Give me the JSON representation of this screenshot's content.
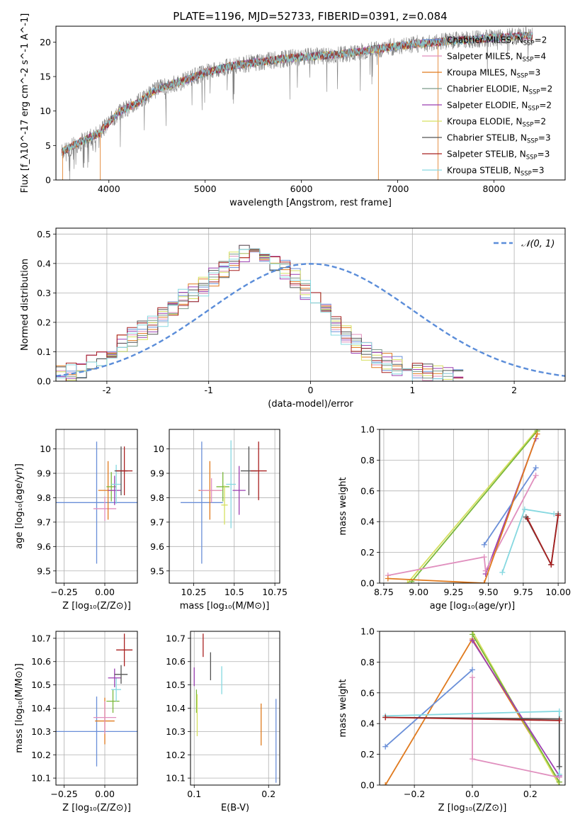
{
  "figure_title": "PLATE=1196, MJD=52733, FIBERID=0391, z=0.084",
  "colors": {
    "chabrier_miles": "#6a8fd8",
    "salpeter_miles": "#e08fbe",
    "kroupa_miles": "#e07a1e",
    "chabrier_elodie": "#7a9a8a",
    "salpeter_elodie": "#9b3fb0",
    "kroupa_elodie": "#d6e060",
    "chabrier_stelib": "#555555",
    "salpeter_stelib": "#a82020",
    "kroupa_stelib": "#86d8e0",
    "green_model": "#7ab83a",
    "normal_curve": "#5b8dd9",
    "grid": "#b0b0b0"
  },
  "chart_data": [
    {
      "id": "spectrum",
      "type": "line",
      "xlabel": "wavelength [Angstrom, rest frame]",
      "ylabel": "Flux [f_λ10^-17 erg cm^-2 s^-1 A^-1]",
      "xlim": [
        3450,
        8740
      ],
      "ylim": [
        0,
        22.3
      ],
      "xticks": [
        4000,
        5000,
        6000,
        7000,
        8000
      ],
      "yticks": [
        0,
        5,
        10,
        15,
        20
      ],
      "grid": false,
      "legend_position": "right",
      "legend": [
        {
          "prefix": "Chabrier MILES, N",
          "n": "2",
          "color": "#6a8fd8"
        },
        {
          "prefix": "Salpeter MILES, N",
          "n": "4",
          "color": "#e08fbe"
        },
        {
          "prefix": "Kroupa MILES, N",
          "n": "3",
          "color": "#e07a1e"
        },
        {
          "prefix": "Chabrier ELODIE, N",
          "n": "2",
          "color": "#7a9a8a"
        },
        {
          "prefix": "Salpeter ELODIE, N",
          "n": "2",
          "color": "#9b3fb0"
        },
        {
          "prefix": "Kroupa ELODIE, N",
          "n": "2",
          "color": "#d6e060"
        },
        {
          "prefix": "Chabrier STELIB, N",
          "n": "3",
          "color": "#555555"
        },
        {
          "prefix": "Salpeter STELIB, N",
          "n": "3",
          "color": "#a82020"
        },
        {
          "prefix": "Kroupa STELIB, N",
          "n": "3",
          "color": "#86d8e0"
        }
      ],
      "continuum": {
        "x": [
          3500,
          3700,
          3900,
          4100,
          4300,
          4500,
          4800,
          5000,
          5300,
          5600,
          5900,
          6200,
          6500,
          6800,
          7100,
          7400,
          7700,
          8000,
          8300
        ],
        "y": [
          4.0,
          5.5,
          6.8,
          9.8,
          11.2,
          13.2,
          14.5,
          15.6,
          16.6,
          17.2,
          17.7,
          18.0,
          18.4,
          19.0,
          19.6,
          20.0,
          20.3,
          20.6,
          20.9
        ]
      }
    },
    {
      "id": "residuals",
      "type": "line",
      "xlabel": "(data-model)/error",
      "ylabel": "Normed distribution",
      "xlim": [
        -2.5,
        2.5
      ],
      "ylim": [
        0,
        0.52
      ],
      "xticks": [
        -2,
        -1,
        0,
        1,
        2
      ],
      "yticks": [
        0.0,
        0.1,
        0.2,
        0.3,
        0.4,
        0.5
      ],
      "grid": true,
      "legend": "𝒩(0, 1)",
      "bin_width": 0.1,
      "envelope": [
        0.02,
        0.03,
        0.04,
        0.06,
        0.08,
        0.1,
        0.13,
        0.15,
        0.17,
        0.19,
        0.22,
        0.25,
        0.28,
        0.3,
        0.32,
        0.35,
        0.38,
        0.41,
        0.43,
        0.44,
        0.43,
        0.41,
        0.38,
        0.35,
        0.31,
        0.27,
        0.23,
        0.19,
        0.16,
        0.13,
        0.1,
        0.08,
        0.06,
        0.05,
        0.04,
        0.03,
        0.03,
        0.02,
        0.02,
        0.02
      ]
    },
    {
      "id": "age_vs_Z",
      "type": "scatter",
      "xlabel": "Z [log₁₀(Z/Z⊙)]",
      "ylabel": "age  [log₁₀(age/yr)]",
      "xlim": [
        -0.3,
        0.2
      ],
      "ylim": [
        9.45,
        10.08
      ],
      "xticks": [
        -0.25,
        0.0
      ],
      "xticklabels": [
        "−0.25",
        "0.00"
      ],
      "yticks": [
        9.5,
        9.6,
        9.7,
        9.8,
        9.9,
        10.0
      ],
      "grid": true,
      "points": [
        {
          "model": "chabrier_miles",
          "x": -0.05,
          "y": 9.78,
          "xerr": 0.25,
          "yerr": 0.25
        },
        {
          "model": "salpeter_miles",
          "x": 0.0,
          "y": 9.755,
          "xerr": 0.07,
          "yerr": 0.05
        },
        {
          "model": "kroupa_miles",
          "x": 0.02,
          "y": 9.83,
          "xerr": 0.06,
          "yerr": 0.12
        },
        {
          "model": "green_model",
          "x": 0.04,
          "y": 9.845,
          "xerr": 0.03,
          "yerr": 0.06
        },
        {
          "model": "salpeter_elodie",
          "x": 0.06,
          "y": 9.83,
          "xerr": 0.04,
          "yerr": 0.06
        },
        {
          "model": "kroupa_stelib",
          "x": 0.07,
          "y": 9.855,
          "xerr": 0.03,
          "yerr": 0.08
        },
        {
          "model": "chabrier_stelib",
          "x": 0.1,
          "y": 9.91,
          "xerr": 0.04,
          "yerr": 0.1
        },
        {
          "model": "salpeter_stelib",
          "x": 0.12,
          "y": 9.91,
          "xerr": 0.05,
          "yerr": 0.1
        }
      ]
    },
    {
      "id": "age_vs_mass",
      "type": "scatter",
      "xlabel": "mass [log₁₀(M/M⊙)]",
      "xlim": [
        10.1,
        10.78
      ],
      "ylim": [
        9.45,
        10.08
      ],
      "xticks": [
        10.25,
        10.5,
        10.75
      ],
      "yticks": [
        9.5,
        9.6,
        9.7,
        9.8,
        9.9,
        10.0
      ],
      "grid": true,
      "points": [
        {
          "model": "chabrier_miles",
          "x": 10.3,
          "y": 9.78,
          "xerr": 0.13,
          "yerr": 0.25
        },
        {
          "model": "kroupa_miles",
          "x": 10.35,
          "y": 9.83,
          "xerr": 0.07,
          "yerr": 0.12
        },
        {
          "model": "salpeter_miles",
          "x": 10.36,
          "y": 9.83,
          "xerr": 0.07,
          "yerr": 0.05
        },
        {
          "model": "green_model",
          "x": 10.43,
          "y": 9.845,
          "xerr": 0.04,
          "yerr": 0.06
        },
        {
          "model": "kroupa_elodie",
          "x": 10.44,
          "y": 9.77,
          "xerr": 0.02,
          "yerr": 0.08
        },
        {
          "model": "salpeter_elodie",
          "x": 10.53,
          "y": 9.83,
          "xerr": 0.04,
          "yerr": 0.1
        },
        {
          "model": "kroupa_stelib",
          "x": 10.48,
          "y": 9.855,
          "xerr": 0.03,
          "yerr": 0.18
        },
        {
          "model": "chabrier_stelib",
          "x": 10.59,
          "y": 9.91,
          "xerr": 0.05,
          "yerr": 0.1
        },
        {
          "model": "salpeter_stelib",
          "x": 10.65,
          "y": 9.91,
          "xerr": 0.05,
          "yerr": 0.12
        }
      ]
    },
    {
      "id": "weight_vs_age",
      "type": "line",
      "xlabel": "age  [log₁₀(age/yr)]",
      "ylabel": "mass weight",
      "xlim": [
        8.72,
        10.05
      ],
      "ylim": [
        0,
        1.0
      ],
      "xticks": [
        8.75,
        9.0,
        9.25,
        9.5,
        9.75,
        10.0
      ],
      "xticklabels": [
        "8.75",
        "9.00",
        "9.25",
        "9.50",
        "9.75",
        "10.00"
      ],
      "yticks": [
        0.0,
        0.2,
        0.4,
        0.6,
        0.8,
        1.0
      ],
      "grid": true,
      "series": [
        {
          "model": "kroupa_elodie",
          "x": [
            8.92,
            9.85
          ],
          "y": [
            0.0,
            1.0
          ]
        },
        {
          "model": "green_model",
          "x": [
            8.95,
            9.85
          ],
          "y": [
            0.01,
            0.99
          ]
        },
        {
          "model": "salpeter_elodie",
          "x": [
            9.48,
            9.84
          ],
          "y": [
            0.06,
            0.94
          ]
        },
        {
          "model": "chabrier_miles",
          "x": [
            9.47,
            9.84
          ],
          "y": [
            0.25,
            0.75
          ]
        },
        {
          "model": "salpeter_miles",
          "x": [
            8.78,
            9.47,
            9.48,
            9.84
          ],
          "y": [
            0.05,
            0.17,
            0.08,
            0.7
          ]
        },
        {
          "model": "kroupa_miles",
          "x": [
            8.78,
            9.47,
            9.85
          ],
          "y": [
            0.03,
            0.0,
            0.97
          ]
        },
        {
          "model": "kroupa_stelib",
          "x": [
            9.6,
            9.76,
            9.97
          ],
          "y": [
            0.07,
            0.48,
            0.45
          ]
        },
        {
          "model": "chabrier_stelib",
          "x": [
            9.77,
            9.95,
            10.0
          ],
          "y": [
            0.43,
            0.12,
            0.45
          ]
        },
        {
          "model": "salpeter_stelib",
          "x": [
            9.78,
            9.95,
            10.0
          ],
          "y": [
            0.42,
            0.12,
            0.44
          ]
        }
      ]
    },
    {
      "id": "mass_vs_Z",
      "type": "scatter",
      "xlabel": "Z [log₁₀(Z/Z⊙)]",
      "ylabel": "mass [log₁₀(M/M⊙)]",
      "xlim": [
        -0.3,
        0.2
      ],
      "ylim": [
        10.07,
        10.73
      ],
      "xticks": [
        -0.25,
        0.0
      ],
      "xticklabels": [
        "−0.25",
        "0.00"
      ],
      "yticks": [
        10.1,
        10.2,
        10.3,
        10.4,
        10.5,
        10.6,
        10.7
      ],
      "grid": true,
      "points": [
        {
          "model": "chabrier_miles",
          "x": -0.05,
          "y": 10.3,
          "xerr": 0.25,
          "yerr": 0.15
        },
        {
          "model": "kroupa_miles",
          "x": 0.0,
          "y": 10.345,
          "xerr": 0.06,
          "yerr": 0.1
        },
        {
          "model": "salpeter_miles",
          "x": 0.0,
          "y": 10.36,
          "xerr": 0.07,
          "yerr": 0.07
        },
        {
          "model": "green_model",
          "x": 0.05,
          "y": 10.43,
          "xerr": 0.04,
          "yerr": 0.05
        },
        {
          "model": "kroupa_stelib",
          "x": 0.07,
          "y": 10.48,
          "xerr": 0.03,
          "yerr": 0.05
        },
        {
          "model": "salpeter_elodie",
          "x": 0.06,
          "y": 10.53,
          "xerr": 0.04,
          "yerr": 0.04
        },
        {
          "model": "chabrier_stelib",
          "x": 0.1,
          "y": 10.545,
          "xerr": 0.04,
          "yerr": 0.04
        },
        {
          "model": "salpeter_stelib",
          "x": 0.12,
          "y": 10.65,
          "xerr": 0.05,
          "yerr": 0.07
        }
      ]
    },
    {
      "id": "mass_vs_EBV",
      "type": "scatter",
      "xlabel": "E(B-V)",
      "xlim": [
        0.095,
        0.215
      ],
      "ylim": [
        10.07,
        10.73
      ],
      "xticks": [
        0.1,
        0.2
      ],
      "yticks": [
        10.1,
        10.2,
        10.3,
        10.4,
        10.5,
        10.6,
        10.7
      ],
      "grid": true,
      "points": [
        {
          "model": "salpeter_elodie",
          "x": 0.1,
          "y": 10.535,
          "yerr": 0.04
        },
        {
          "model": "green_model",
          "x": 0.103,
          "y": 10.43,
          "yerr": 0.05
        },
        {
          "model": "kroupa_elodie",
          "x": 0.104,
          "y": 10.37,
          "yerr": 0.09
        },
        {
          "model": "salpeter_stelib",
          "x": 0.112,
          "y": 10.67,
          "yerr": 0.05
        },
        {
          "model": "chabrier_stelib",
          "x": 0.122,
          "y": 10.58,
          "yerr": 0.06
        },
        {
          "model": "kroupa_stelib",
          "x": 0.137,
          "y": 10.52,
          "yerr": 0.06
        },
        {
          "model": "kroupa_miles",
          "x": 0.19,
          "y": 10.33,
          "yerr": 0.09
        },
        {
          "model": "chabrier_miles",
          "x": 0.21,
          "y": 10.26,
          "yerr": 0.18
        }
      ]
    },
    {
      "id": "weight_vs_Z",
      "type": "line",
      "xlabel": "Z [log₁₀(Z/Z⊙)]",
      "ylabel": "mass weight",
      "xlim": [
        -0.32,
        0.32
      ],
      "ylim": [
        0,
        1.0
      ],
      "xticks": [
        -0.2,
        0.0,
        0.2
      ],
      "xticklabels": [
        "−0.2",
        "0.0",
        "0.2"
      ],
      "yticks": [
        0.0,
        0.2,
        0.4,
        0.6,
        0.8,
        1.0
      ],
      "grid": true,
      "series": [
        {
          "model": "kroupa_miles",
          "x": [
            -0.3,
            0.0,
            0.3
          ],
          "y": [
            0.0,
            0.95,
            0.02
          ]
        },
        {
          "model": "kroupa_elodie",
          "x": [
            0.0,
            0.3
          ],
          "y": [
            1.0,
            0.0
          ]
        },
        {
          "model": "green_model",
          "x": [
            0.0,
            0.3
          ],
          "y": [
            0.98,
            0.02
          ]
        },
        {
          "model": "salpeter_elodie",
          "x": [
            0.0,
            0.3
          ],
          "y": [
            0.94,
            0.06
          ]
        },
        {
          "model": "chabrier_miles",
          "x": [
            -0.3,
            0.0
          ],
          "y": [
            0.25,
            0.75
          ]
        },
        {
          "model": "salpeter_miles",
          "x": [
            0.0,
            0.0,
            0.3
          ],
          "y": [
            0.7,
            0.17,
            0.05
          ]
        },
        {
          "model": "kroupa_stelib",
          "x": [
            -0.3,
            0.3,
            0.3
          ],
          "y": [
            0.45,
            0.48,
            0.07
          ]
        },
        {
          "model": "chabrier_stelib",
          "x": [
            -0.3,
            0.3,
            0.3
          ],
          "y": [
            0.44,
            0.43,
            0.12
          ]
        },
        {
          "model": "salpeter_stelib",
          "x": [
            -0.3,
            0.3
          ],
          "y": [
            0.44,
            0.42
          ]
        }
      ]
    }
  ]
}
